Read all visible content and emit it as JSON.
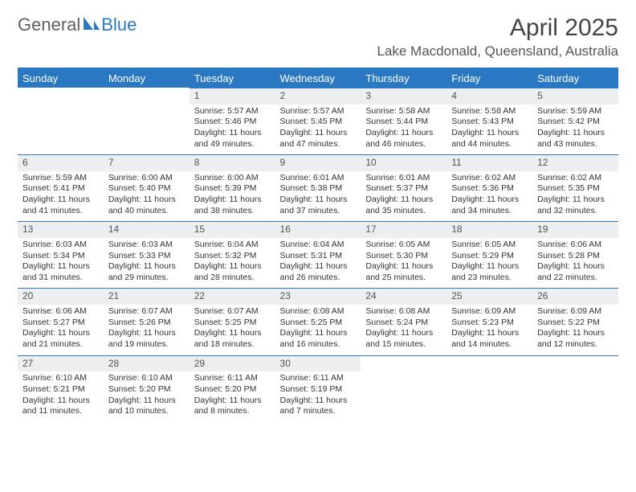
{
  "brand": {
    "part1": "General",
    "part2": "Blue"
  },
  "title": "April 2025",
  "location": "Lake Macdonald, Queensland, Australia",
  "colors": {
    "accent": "#2b78c2",
    "header_bg": "#2b78c2",
    "header_fg": "#ffffff",
    "daynum_bg": "#eceeef",
    "text": "#333333",
    "logo_gray": "#5f5f5f"
  },
  "day_labels": [
    "Sunday",
    "Monday",
    "Tuesday",
    "Wednesday",
    "Thursday",
    "Friday",
    "Saturday"
  ],
  "weeks": [
    [
      null,
      null,
      {
        "n": "1",
        "sr": "5:57 AM",
        "ss": "5:46 PM",
        "dl": "11 hours and 49 minutes."
      },
      {
        "n": "2",
        "sr": "5:57 AM",
        "ss": "5:45 PM",
        "dl": "11 hours and 47 minutes."
      },
      {
        "n": "3",
        "sr": "5:58 AM",
        "ss": "5:44 PM",
        "dl": "11 hours and 46 minutes."
      },
      {
        "n": "4",
        "sr": "5:58 AM",
        "ss": "5:43 PM",
        "dl": "11 hours and 44 minutes."
      },
      {
        "n": "5",
        "sr": "5:59 AM",
        "ss": "5:42 PM",
        "dl": "11 hours and 43 minutes."
      }
    ],
    [
      {
        "n": "6",
        "sr": "5:59 AM",
        "ss": "5:41 PM",
        "dl": "11 hours and 41 minutes."
      },
      {
        "n": "7",
        "sr": "6:00 AM",
        "ss": "5:40 PM",
        "dl": "11 hours and 40 minutes."
      },
      {
        "n": "8",
        "sr": "6:00 AM",
        "ss": "5:39 PM",
        "dl": "11 hours and 38 minutes."
      },
      {
        "n": "9",
        "sr": "6:01 AM",
        "ss": "5:38 PM",
        "dl": "11 hours and 37 minutes."
      },
      {
        "n": "10",
        "sr": "6:01 AM",
        "ss": "5:37 PM",
        "dl": "11 hours and 35 minutes."
      },
      {
        "n": "11",
        "sr": "6:02 AM",
        "ss": "5:36 PM",
        "dl": "11 hours and 34 minutes."
      },
      {
        "n": "12",
        "sr": "6:02 AM",
        "ss": "5:35 PM",
        "dl": "11 hours and 32 minutes."
      }
    ],
    [
      {
        "n": "13",
        "sr": "6:03 AM",
        "ss": "5:34 PM",
        "dl": "11 hours and 31 minutes."
      },
      {
        "n": "14",
        "sr": "6:03 AM",
        "ss": "5:33 PM",
        "dl": "11 hours and 29 minutes."
      },
      {
        "n": "15",
        "sr": "6:04 AM",
        "ss": "5:32 PM",
        "dl": "11 hours and 28 minutes."
      },
      {
        "n": "16",
        "sr": "6:04 AM",
        "ss": "5:31 PM",
        "dl": "11 hours and 26 minutes."
      },
      {
        "n": "17",
        "sr": "6:05 AM",
        "ss": "5:30 PM",
        "dl": "11 hours and 25 minutes."
      },
      {
        "n": "18",
        "sr": "6:05 AM",
        "ss": "5:29 PM",
        "dl": "11 hours and 23 minutes."
      },
      {
        "n": "19",
        "sr": "6:06 AM",
        "ss": "5:28 PM",
        "dl": "11 hours and 22 minutes."
      }
    ],
    [
      {
        "n": "20",
        "sr": "6:06 AM",
        "ss": "5:27 PM",
        "dl": "11 hours and 21 minutes."
      },
      {
        "n": "21",
        "sr": "6:07 AM",
        "ss": "5:26 PM",
        "dl": "11 hours and 19 minutes."
      },
      {
        "n": "22",
        "sr": "6:07 AM",
        "ss": "5:25 PM",
        "dl": "11 hours and 18 minutes."
      },
      {
        "n": "23",
        "sr": "6:08 AM",
        "ss": "5:25 PM",
        "dl": "11 hours and 16 minutes."
      },
      {
        "n": "24",
        "sr": "6:08 AM",
        "ss": "5:24 PM",
        "dl": "11 hours and 15 minutes."
      },
      {
        "n": "25",
        "sr": "6:09 AM",
        "ss": "5:23 PM",
        "dl": "11 hours and 14 minutes."
      },
      {
        "n": "26",
        "sr": "6:09 AM",
        "ss": "5:22 PM",
        "dl": "11 hours and 12 minutes."
      }
    ],
    [
      {
        "n": "27",
        "sr": "6:10 AM",
        "ss": "5:21 PM",
        "dl": "11 hours and 11 minutes."
      },
      {
        "n": "28",
        "sr": "6:10 AM",
        "ss": "5:20 PM",
        "dl": "11 hours and 10 minutes."
      },
      {
        "n": "29",
        "sr": "6:11 AM",
        "ss": "5:20 PM",
        "dl": "11 hours and 8 minutes."
      },
      {
        "n": "30",
        "sr": "6:11 AM",
        "ss": "5:19 PM",
        "dl": "11 hours and 7 minutes."
      },
      null,
      null,
      null
    ]
  ],
  "labels": {
    "sunrise": "Sunrise:",
    "sunset": "Sunset:",
    "daylight": "Daylight:"
  }
}
